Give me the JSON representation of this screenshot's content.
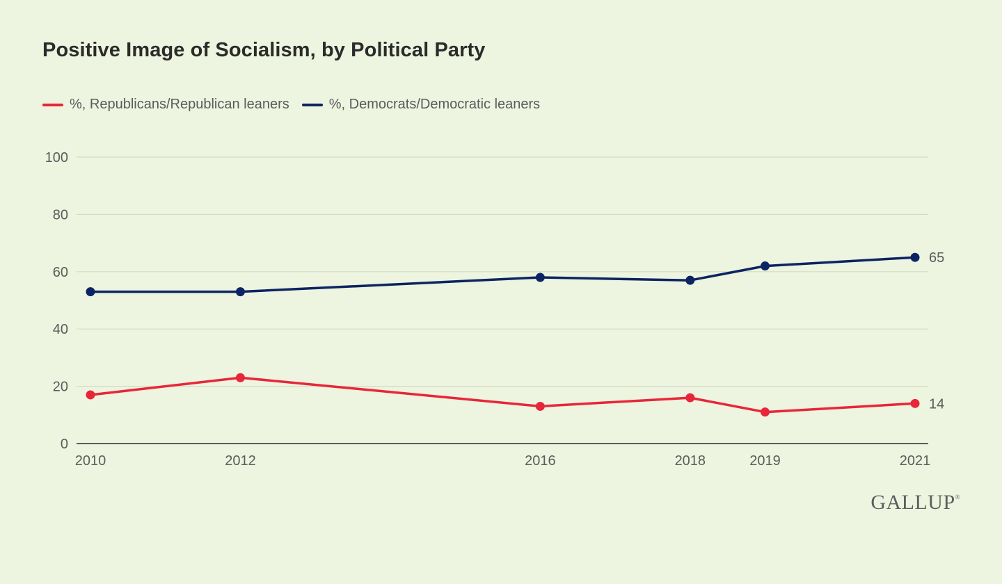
{
  "chart_data": {
    "type": "line",
    "title": "Positive Image of Socialism, by Political Party",
    "xlabel": "",
    "ylabel": "",
    "x": [
      2010,
      2012,
      2016,
      2018,
      2019,
      2021
    ],
    "x_tick_labels": [
      "2010",
      "2012",
      "2016",
      "2018",
      "2019",
      "2021"
    ],
    "xlim": [
      2010,
      2021
    ],
    "ylim": [
      0,
      100
    ],
    "y_ticks": [
      0,
      20,
      40,
      60,
      80,
      100
    ],
    "grid": true,
    "legend_position": "top-left",
    "series": [
      {
        "name": "%, Republicans/Republican leaners",
        "color": "#e8263a",
        "values": [
          17,
          23,
          13,
          16,
          11,
          14
        ],
        "end_label": "14"
      },
      {
        "name": "%, Democrats/Democratic leaners",
        "color": "#0c2463",
        "values": [
          53,
          53,
          58,
          57,
          62,
          65
        ],
        "end_label": "65"
      }
    ]
  },
  "branding": {
    "logo_text": "GALLUP",
    "logo_mark": "®"
  }
}
